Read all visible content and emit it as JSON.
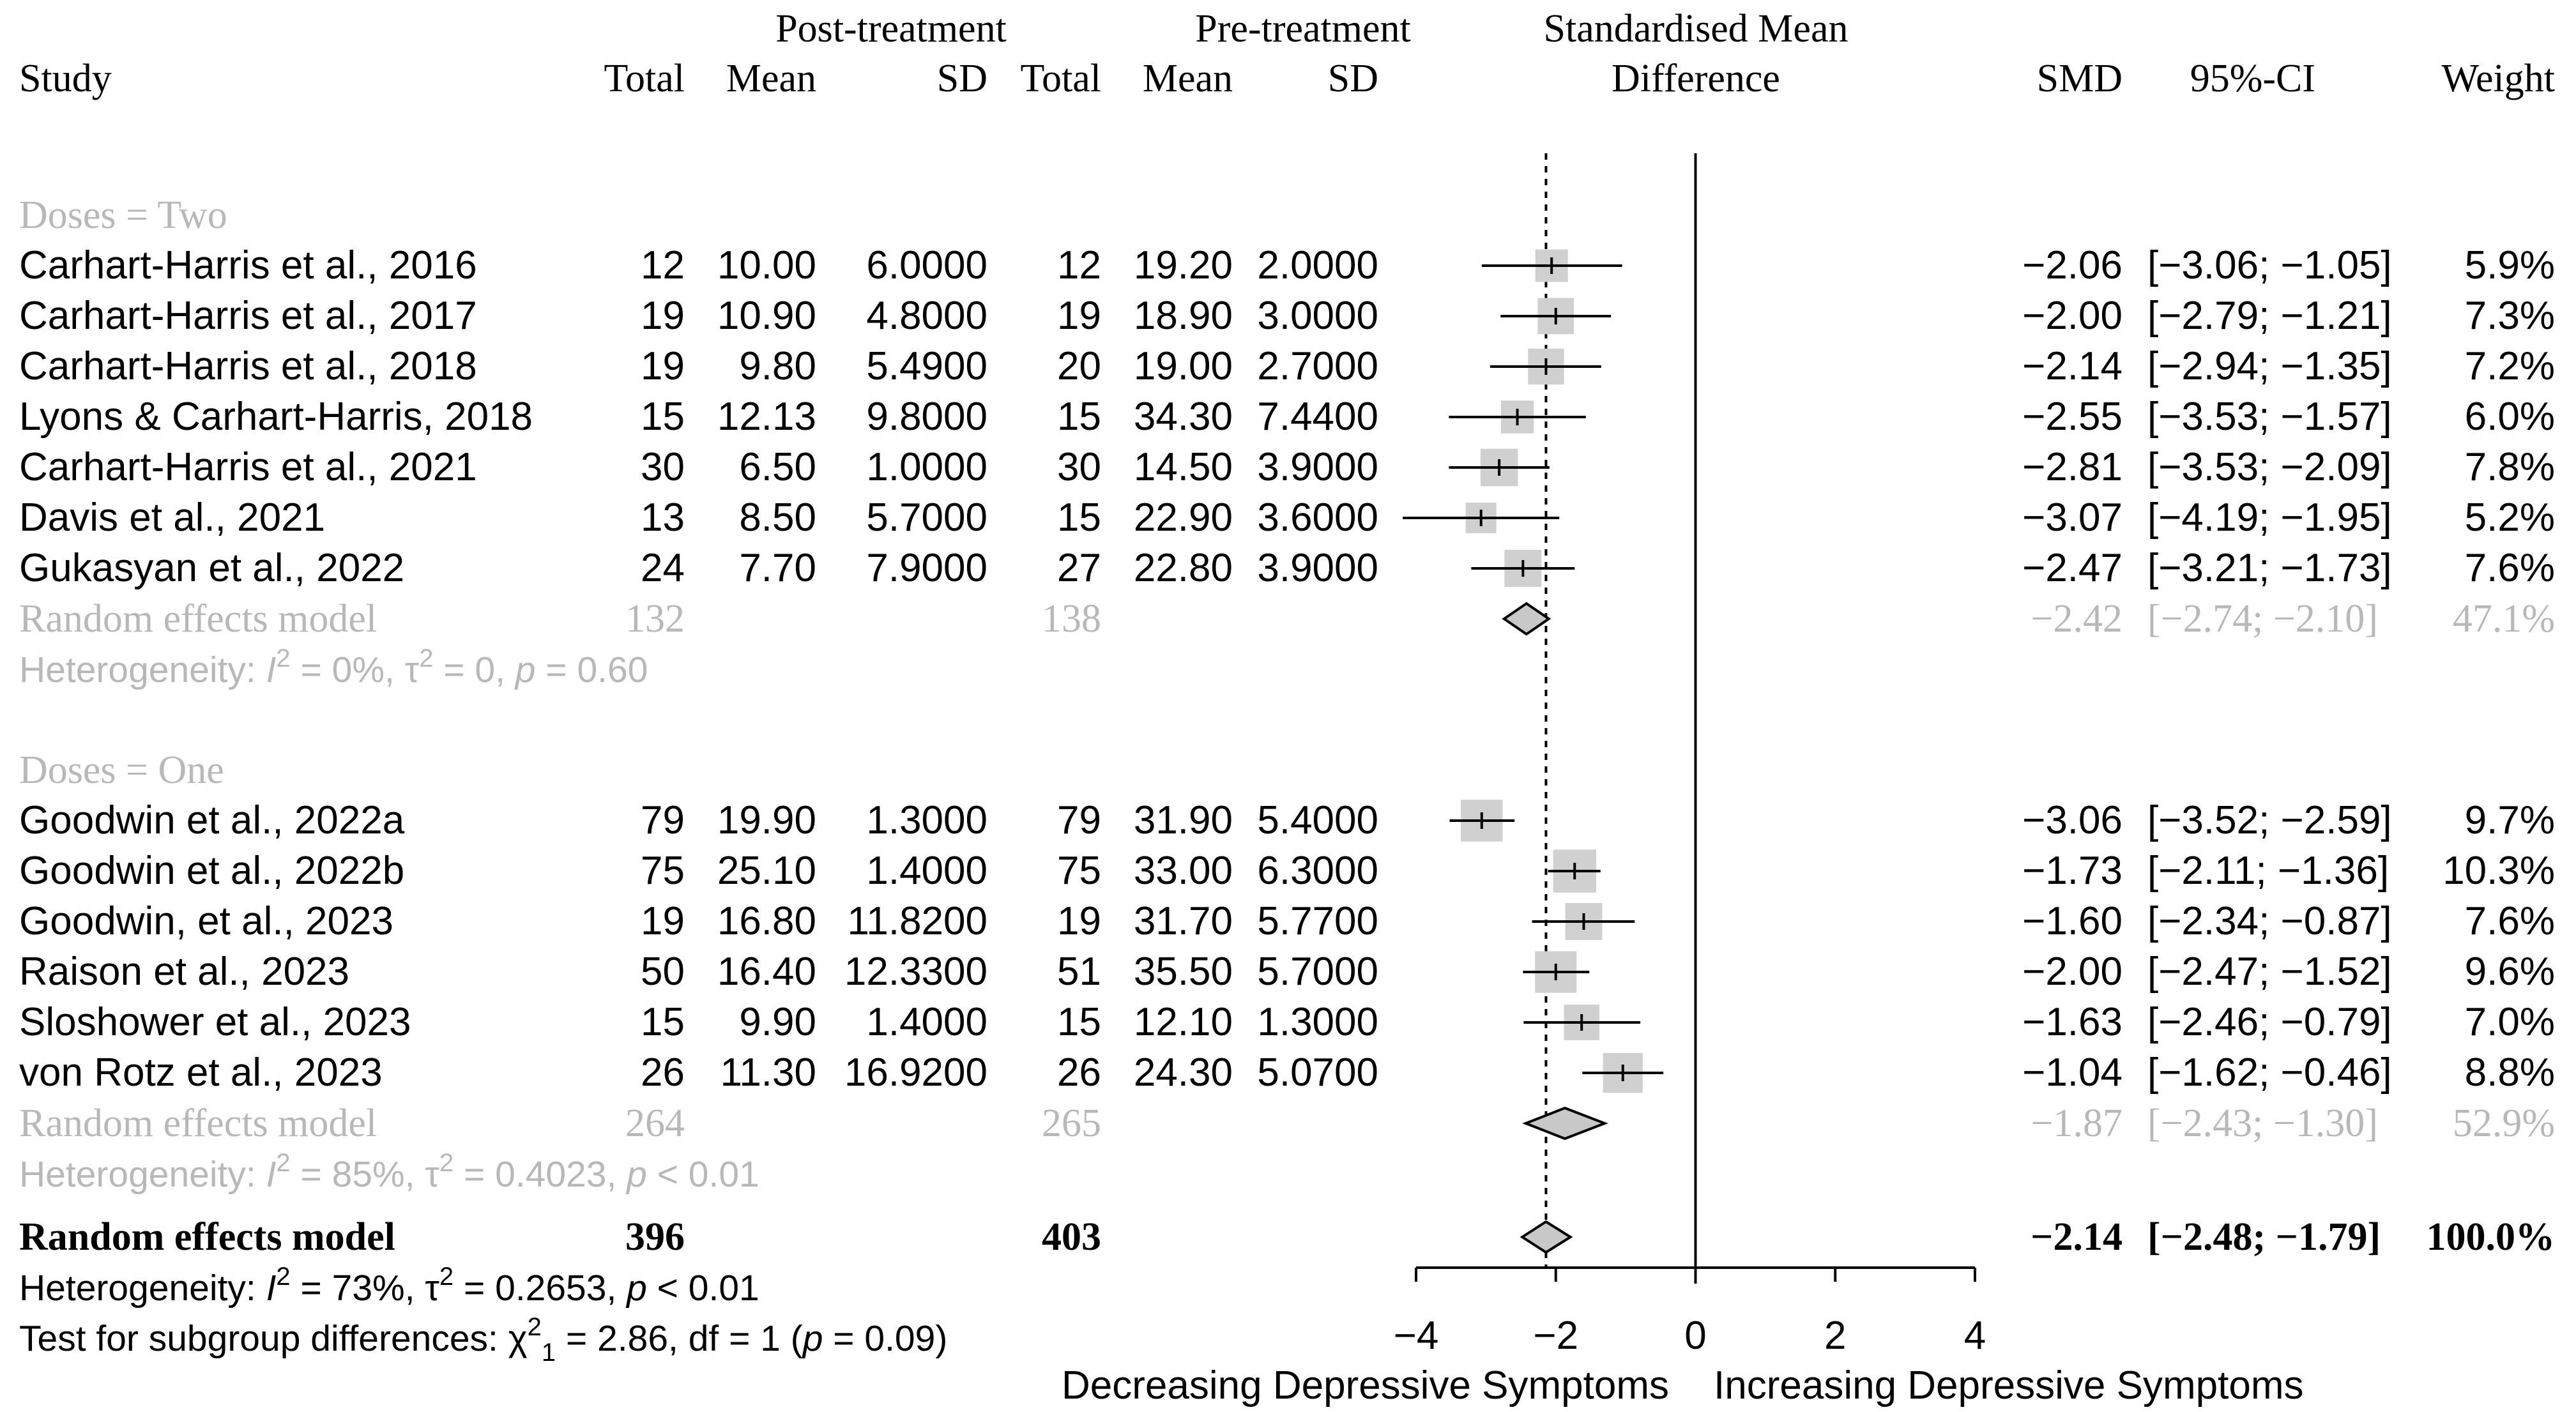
{
  "chart_data": {
    "type": "forest",
    "header": {
      "post_treatment": "Post-treatment",
      "pre_treatment": "Pre-treatment",
      "smd_title_line1": "Standardised Mean",
      "smd_title_line2": "Difference",
      "study": "Study",
      "total": "Total",
      "mean": "Mean",
      "sd": "SD",
      "smd": "SMD",
      "ci": "95%-CI",
      "weight": "Weight"
    },
    "groups": [
      {
        "label": "Doses = Two",
        "studies": [
          {
            "study": "Carhart-Harris et al., 2016",
            "post_total": "12",
            "post_mean": "10.00",
            "post_sd": "6.0000",
            "pre_total": "12",
            "pre_mean": "19.20",
            "pre_sd": "2.0000",
            "smd_text": "−2.06",
            "ci_text": "[−3.06; −1.05]",
            "weight_text": "5.9%",
            "smd": -2.06,
            "lower": -3.06,
            "upper": -1.05,
            "weight": 5.9
          },
          {
            "study": "Carhart-Harris et al., 2017",
            "post_total": "19",
            "post_mean": "10.90",
            "post_sd": "4.8000",
            "pre_total": "19",
            "pre_mean": "18.90",
            "pre_sd": "3.0000",
            "smd_text": "−2.00",
            "ci_text": "[−2.79; −1.21]",
            "weight_text": "7.3%",
            "smd": -2.0,
            "lower": -2.79,
            "upper": -1.21,
            "weight": 7.3
          },
          {
            "study": "Carhart-Harris et al., 2018",
            "post_total": "19",
            "post_mean": "9.80",
            "post_sd": "5.4900",
            "pre_total": "20",
            "pre_mean": "19.00",
            "pre_sd": "2.7000",
            "smd_text": "−2.14",
            "ci_text": "[−2.94; −1.35]",
            "weight_text": "7.2%",
            "smd": -2.14,
            "lower": -2.94,
            "upper": -1.35,
            "weight": 7.2
          },
          {
            "study": "Lyons & Carhart-Harris, 2018",
            "post_total": "15",
            "post_mean": "12.13",
            "post_sd": "9.8000",
            "pre_total": "15",
            "pre_mean": "34.30",
            "pre_sd": "7.4400",
            "smd_text": "−2.55",
            "ci_text": "[−3.53; −1.57]",
            "weight_text": "6.0%",
            "smd": -2.55,
            "lower": -3.53,
            "upper": -1.57,
            "weight": 6.0
          },
          {
            "study": "Carhart-Harris et al., 2021",
            "post_total": "30",
            "post_mean": "6.50",
            "post_sd": "1.0000",
            "pre_total": "30",
            "pre_mean": "14.50",
            "pre_sd": "3.9000",
            "smd_text": "−2.81",
            "ci_text": "[−3.53; −2.09]",
            "weight_text": "7.8%",
            "smd": -2.81,
            "lower": -3.53,
            "upper": -2.09,
            "weight": 7.8
          },
          {
            "study": "Davis et al., 2021",
            "post_total": "13",
            "post_mean": "8.50",
            "post_sd": "5.7000",
            "pre_total": "15",
            "pre_mean": "22.90",
            "pre_sd": "3.6000",
            "smd_text": "−3.07",
            "ci_text": "[−4.19; −1.95]",
            "weight_text": "5.2%",
            "smd": -3.07,
            "lower": -4.19,
            "upper": -1.95,
            "weight": 5.2
          },
          {
            "study": "Gukasyan et al., 2022",
            "post_total": "24",
            "post_mean": "7.70",
            "post_sd": "7.9000",
            "pre_total": "27",
            "pre_mean": "22.80",
            "pre_sd": "3.9000",
            "smd_text": "−2.47",
            "ci_text": "[−3.21; −1.73]",
            "weight_text": "7.6%",
            "smd": -2.47,
            "lower": -3.21,
            "upper": -1.73,
            "weight": 7.6
          }
        ],
        "pooled": {
          "label": "Random effects model",
          "post_total": "132",
          "pre_total": "138",
          "smd_text": "−2.42",
          "ci_text": "[−2.74; −2.10]",
          "weight_text": "47.1%",
          "smd": -2.42,
          "lower": -2.74,
          "upper": -2.1
        },
        "heterogeneity": {
          "prefix": "Heterogeneity: ",
          "i2": "I",
          "i2_rest": " = 0%, ",
          "tau": "τ",
          "tau_rest": " = 0, ",
          "p": "p",
          "p_rest": " = 0.60"
        }
      },
      {
        "label": "Doses = One",
        "studies": [
          {
            "study": "Goodwin et al., 2022a",
            "post_total": "79",
            "post_mean": "19.90",
            "post_sd": "1.3000",
            "pre_total": "79",
            "pre_mean": "31.90",
            "pre_sd": "5.4000",
            "smd_text": "−3.06",
            "ci_text": "[−3.52; −2.59]",
            "weight_text": "9.7%",
            "smd": -3.06,
            "lower": -3.52,
            "upper": -2.59,
            "weight": 9.7
          },
          {
            "study": "Goodwin et al., 2022b",
            "post_total": "75",
            "post_mean": "25.10",
            "post_sd": "1.4000",
            "pre_total": "75",
            "pre_mean": "33.00",
            "pre_sd": "6.3000",
            "smd_text": "−1.73",
            "ci_text": "[−2.11; −1.36]",
            "weight_text": "10.3%",
            "smd": -1.73,
            "lower": -2.11,
            "upper": -1.36,
            "weight": 10.3
          },
          {
            "study": "Goodwin, et al., 2023",
            "post_total": "19",
            "post_mean": "16.80",
            "post_sd": "11.8200",
            "pre_total": "19",
            "pre_mean": "31.70",
            "pre_sd": "5.7700",
            "smd_text": "−1.60",
            "ci_text": "[−2.34; −0.87]",
            "weight_text": "7.6%",
            "smd": -1.6,
            "lower": -2.34,
            "upper": -0.87,
            "weight": 7.6
          },
          {
            "study": "Raison et al., 2023",
            "post_total": "50",
            "post_mean": "16.40",
            "post_sd": "12.3300",
            "pre_total": "51",
            "pre_mean": "35.50",
            "pre_sd": "5.7000",
            "smd_text": "−2.00",
            "ci_text": "[−2.47; −1.52]",
            "weight_text": "9.6%",
            "smd": -2.0,
            "lower": -2.47,
            "upper": -1.52,
            "weight": 9.6
          },
          {
            "study": "Sloshower et al., 2023",
            "post_total": "15",
            "post_mean": "9.90",
            "post_sd": "1.4000",
            "pre_total": "15",
            "pre_mean": "12.10",
            "pre_sd": "1.3000",
            "smd_text": "−1.63",
            "ci_text": "[−2.46; −0.79]",
            "weight_text": "7.0%",
            "smd": -1.63,
            "lower": -2.46,
            "upper": -0.79,
            "weight": 7.0
          },
          {
            "study": "von Rotz et al., 2023",
            "post_total": "26",
            "post_mean": "11.30",
            "post_sd": "16.9200",
            "pre_total": "26",
            "pre_mean": "24.30",
            "pre_sd": "5.0700",
            "smd_text": "−1.04",
            "ci_text": "[−1.62; −0.46]",
            "weight_text": "8.8%",
            "smd": -1.04,
            "lower": -1.62,
            "upper": -0.46,
            "weight": 8.8
          }
        ],
        "pooled": {
          "label": "Random effects model",
          "post_total": "264",
          "pre_total": "265",
          "smd_text": "−1.87",
          "ci_text": "[−2.43; −1.30]",
          "weight_text": "52.9%",
          "smd": -1.87,
          "lower": -2.43,
          "upper": -1.3
        },
        "heterogeneity": {
          "prefix": "Heterogeneity: ",
          "i2": "I",
          "i2_rest": " = 85%, ",
          "tau": "τ",
          "tau_rest": " = 0.4023, ",
          "p": "p",
          "p_rest": " < 0.01"
        }
      }
    ],
    "overall": {
      "label": "Random effects model",
      "post_total": "396",
      "pre_total": "403",
      "smd_text": "−2.14",
      "ci_text": "[−2.48; −1.79]",
      "weight_text": "100.0%",
      "smd": -2.14,
      "lower": -2.48,
      "upper": -1.79,
      "heterogeneity": {
        "prefix": "Heterogeneity: ",
        "i2": "I",
        "i2_rest": " = 73%, ",
        "tau": "τ",
        "tau_rest": " = 0.2653, ",
        "p": "p",
        "p_rest": " < 0.01"
      },
      "subgroup_test": {
        "prefix": "Test for subgroup differences: ",
        "chi": "χ",
        "chi_sub": "1",
        "chi_rest": " = 2.86, df = 1 (",
        "p": "p",
        "p_rest": " = 0.09)"
      }
    },
    "x_axis": {
      "min": -4,
      "max": 4,
      "ticks": [
        -4,
        -2,
        0,
        2,
        4
      ],
      "tick_labels": [
        "−4",
        "−2",
        "0",
        "2",
        "4"
      ],
      "left_label": "Decreasing Depressive Symptoms",
      "right_label": "Increasing Depressive Symptoms"
    },
    "null_line": 0,
    "overall_effect_line": -2.14
  },
  "colors": {
    "text": "#000000",
    "muted": "#b8b8b8",
    "square": "#d0d0d0",
    "diamond_fill": "#c8c8c8",
    "line": "#000000"
  }
}
